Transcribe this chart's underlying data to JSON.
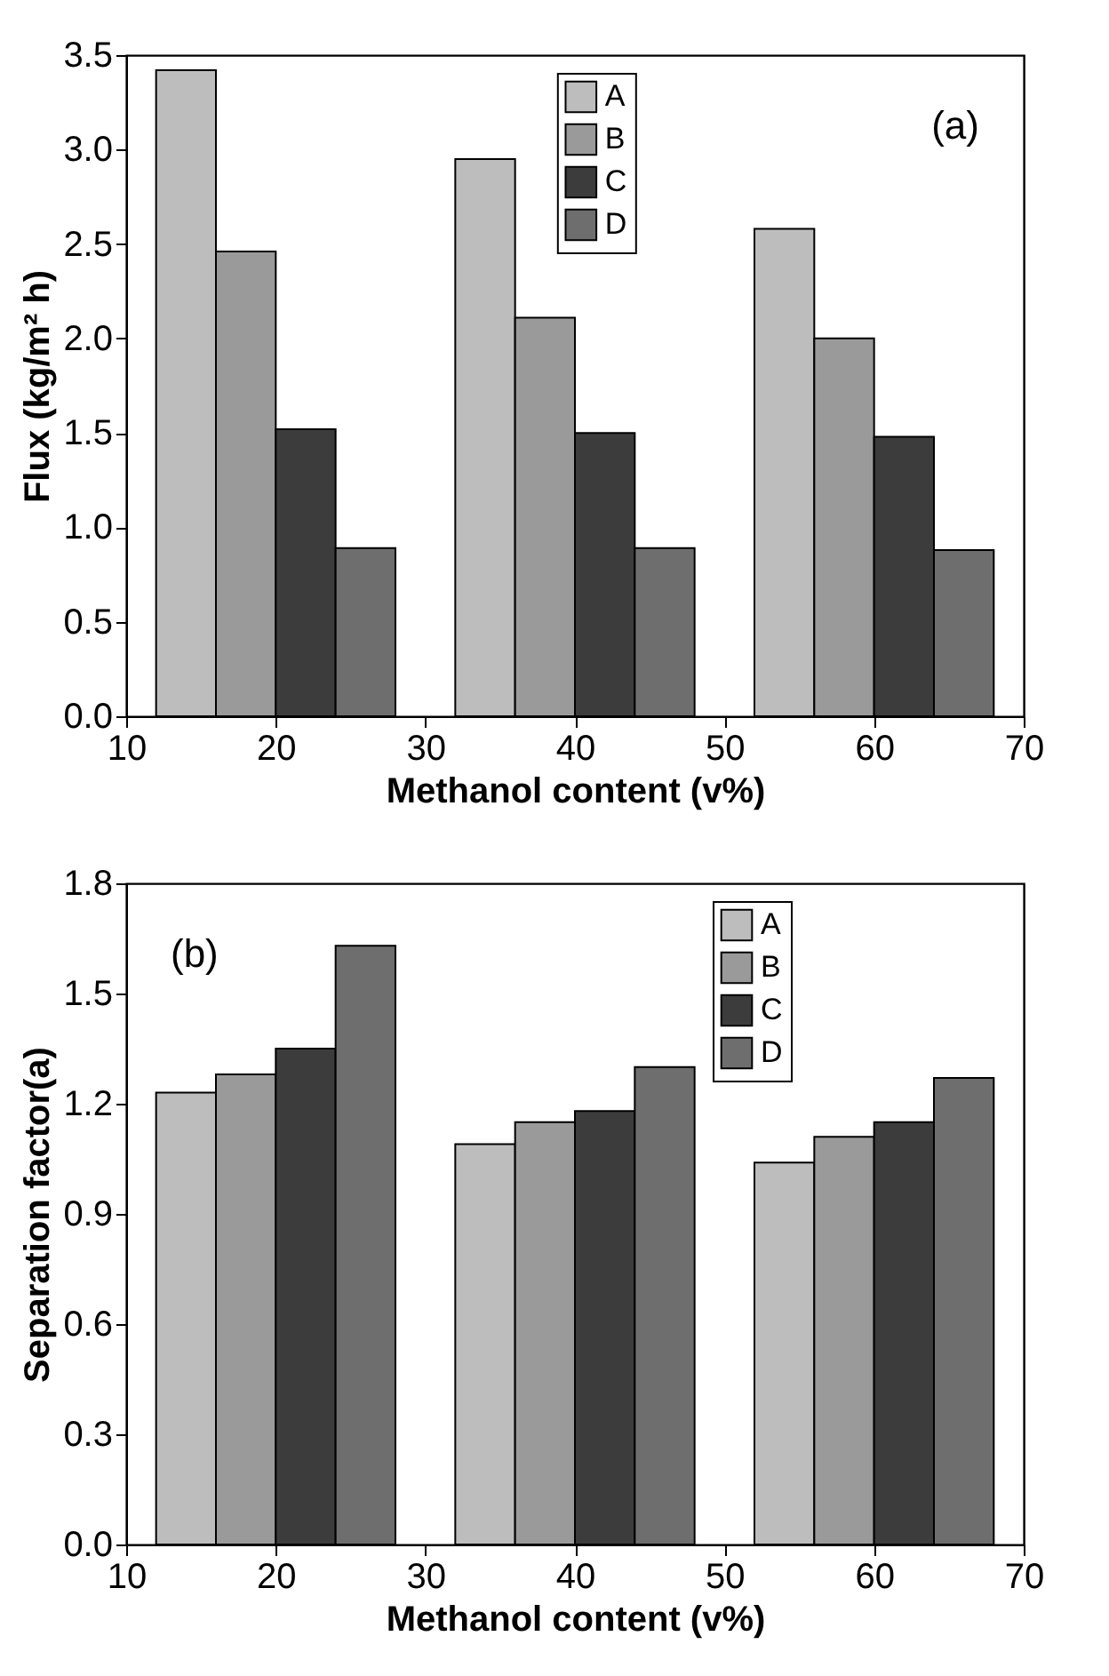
{
  "chart_data": [
    {
      "type": "bar",
      "xlabel": "Methanol content (v%)",
      "ylabel": "Flux (kg/m² h)",
      "annotations": [
        "(a)"
      ],
      "xlim": [
        10,
        70
      ],
      "xticks": [
        10,
        20,
        30,
        40,
        50,
        60,
        70
      ],
      "ylim": [
        0,
        3.5
      ],
      "yticks": [
        {
          "value": 0,
          "label": "0.0"
        },
        0.5,
        {
          "value": 1,
          "label": "1.0"
        },
        1.5,
        {
          "value": 2,
          "label": "2.0"
        },
        2.5,
        {
          "value": 3,
          "label": "3.0"
        },
        3.5
      ],
      "legend": "top",
      "grid": false,
      "series": [
        {
          "name": "A",
          "color": "#bdbdbd",
          "x": [
            14,
            34,
            54
          ],
          "values": [
            3.42,
            2.95,
            2.58
          ]
        },
        {
          "name": "B",
          "color": "#9a9a9a",
          "x": [
            18,
            38,
            58
          ],
          "values": [
            2.46,
            2.11,
            2.0
          ]
        },
        {
          "name": "C",
          "color": "#3c3c3c",
          "x": [
            22,
            42,
            62
          ],
          "values": [
            1.52,
            1.5,
            1.48
          ]
        },
        {
          "name": "D",
          "color": "#6e6e6e",
          "x": [
            26,
            46,
            66
          ],
          "values": [
            0.89,
            0.89,
            0.88
          ]
        }
      ]
    },
    {
      "type": "bar",
      "xlabel": "Methanol content (v%)",
      "ylabel": "Separation factor(a)",
      "annotations": [
        "(b)"
      ],
      "xlim": [
        10,
        70
      ],
      "xticks": [
        10,
        20,
        30,
        40,
        50,
        60,
        70
      ],
      "ylim": [
        0,
        1.8
      ],
      "yticks": [
        {
          "value": 0,
          "label": "0.0"
        },
        0.3,
        0.6,
        0.9,
        1.2,
        1.5,
        1.8
      ],
      "legend": "top right",
      "grid": false,
      "series": [
        {
          "name": "A",
          "color": "#bdbdbd",
          "x": [
            14,
            34,
            54
          ],
          "values": [
            1.23,
            1.09,
            1.04
          ]
        },
        {
          "name": "B",
          "color": "#9a9a9a",
          "x": [
            18,
            38,
            58
          ],
          "values": [
            1.28,
            1.15,
            1.11
          ]
        },
        {
          "name": "C",
          "color": "#3c3c3c",
          "x": [
            22,
            42,
            62
          ],
          "values": [
            1.35,
            1.18,
            1.15
          ]
        },
        {
          "name": "D",
          "color": "#6e6e6e",
          "x": [
            26,
            46,
            66
          ],
          "values": [
            1.63,
            1.3,
            1.27
          ]
        }
      ]
    }
  ]
}
